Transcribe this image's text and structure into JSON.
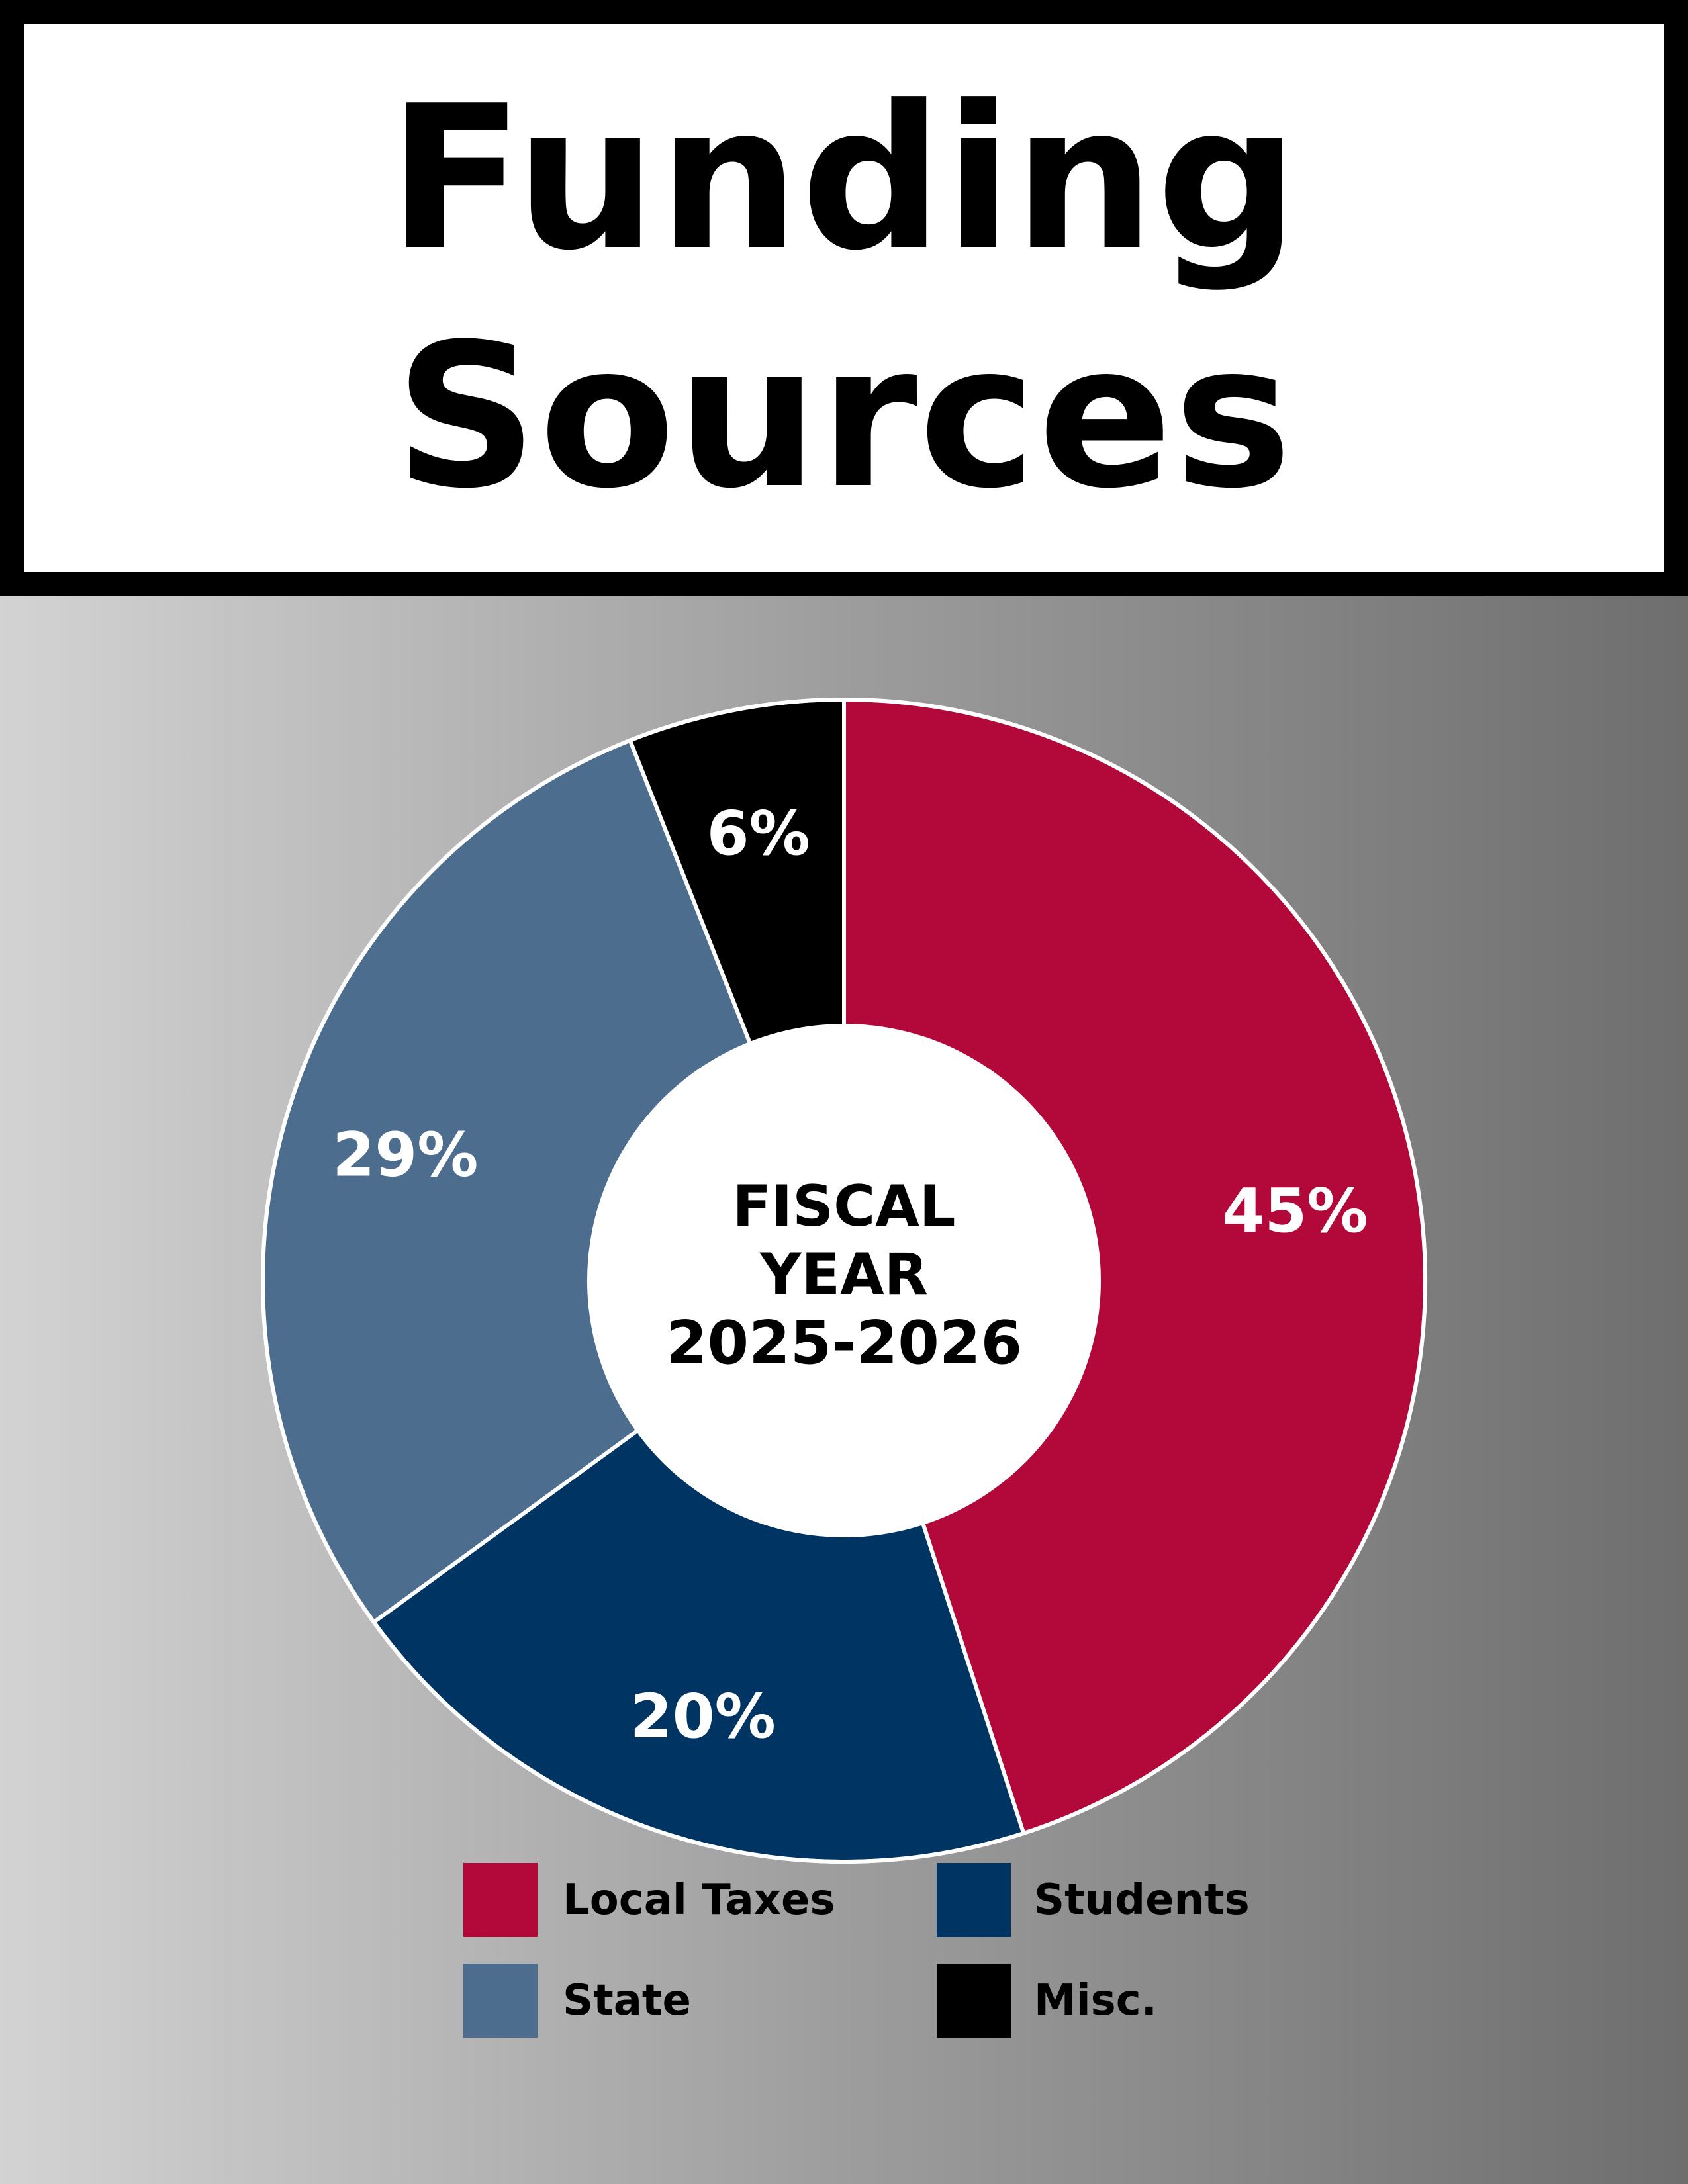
{
  "chart_data": {
    "type": "pie",
    "title_lines": [
      "Funding",
      "Sources"
    ],
    "center_label": [
      "FISCAL",
      "YEAR",
      "2025-2026"
    ],
    "slices": [
      {
        "name": "Local Taxes",
        "value": 45,
        "label": "45%",
        "color": "#b2083a"
      },
      {
        "name": "Students",
        "value": 20,
        "label": "20%",
        "color": "#003563"
      },
      {
        "name": "State",
        "value": 29,
        "label": "29%",
        "color": "#4c6d8e"
      },
      {
        "name": "Misc.",
        "value": 6,
        "label": "6%",
        "color": "#000000"
      }
    ],
    "legend": [
      "Local Taxes",
      "Students",
      "State",
      "Misc."
    ]
  }
}
